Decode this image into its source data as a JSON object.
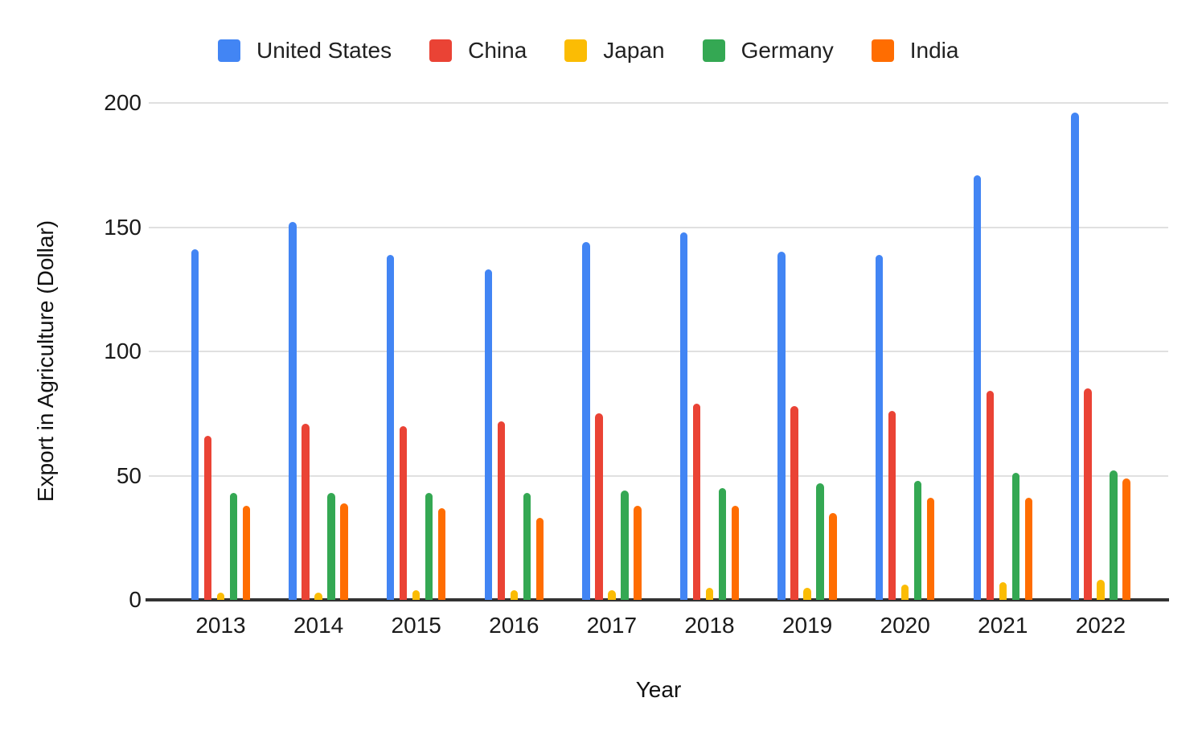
{
  "chart_data": {
    "type": "bar",
    "title": "",
    "xlabel": "Year",
    "ylabel": "Export in Agriculture (Dollar)",
    "categories": [
      "2013",
      "2014",
      "2015",
      "2016",
      "2017",
      "2018",
      "2019",
      "2020",
      "2021",
      "2022"
    ],
    "series": [
      {
        "name": "United States",
        "color": "#4285F4",
        "values": [
          141,
          152,
          139,
          133,
          144,
          148,
          140,
          139,
          171,
          196
        ]
      },
      {
        "name": "China",
        "color": "#EA4335",
        "values": [
          66,
          71,
          70,
          72,
          75,
          79,
          78,
          76,
          84,
          85
        ]
      },
      {
        "name": "Japan",
        "color": "#FBBC04",
        "values": [
          3,
          3,
          4,
          4,
          4,
          5,
          5,
          6,
          7,
          8
        ]
      },
      {
        "name": "Germany",
        "color": "#34A853",
        "values": [
          43,
          43,
          43,
          43,
          44,
          45,
          47,
          48,
          51,
          52
        ]
      },
      {
        "name": "India",
        "color": "#FF6D01",
        "values": [
          38,
          39,
          37,
          33,
          38,
          38,
          35,
          41,
          41,
          49
        ]
      }
    ],
    "ylim": [
      0,
      200
    ],
    "yticks": [
      0,
      50,
      100,
      150,
      200
    ],
    "grid": true,
    "legend_position": "top",
    "colors": {
      "gridline": "#E0E0E0",
      "axis_line": "#333333",
      "text": "#1A1A1A",
      "background": "#FFFFFF"
    }
  }
}
